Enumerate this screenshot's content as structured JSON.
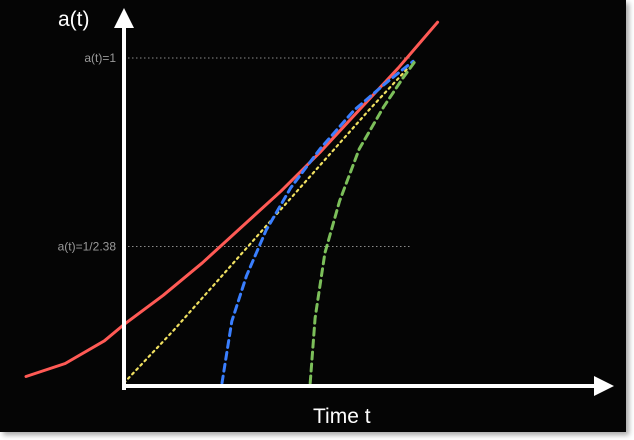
{
  "chart_data": {
    "type": "line",
    "ylabel": "a(t)",
    "xlabel": "Time t",
    "reference_lines": [
      {
        "label": "a(t)=1",
        "value": 1.0
      },
      {
        "label": "a(t)=1/2.38",
        "value": 0.42
      }
    ],
    "xlim": [
      -1.0,
      4.0
    ],
    "ylim": [
      0.0,
      1.2
    ],
    "series": [
      {
        "color": "#ff5a55",
        "style": "solid",
        "x": [
          -1.0,
          -0.6,
          -0.2,
          0.0,
          0.4,
          0.8,
          1.2,
          1.6,
          2.0,
          2.4,
          2.8,
          3.0,
          3.2
        ],
        "y": [
          0.02,
          0.06,
          0.13,
          0.18,
          0.27,
          0.37,
          0.48,
          0.59,
          0.71,
          0.84,
          0.97,
          1.04,
          1.11
        ]
      },
      {
        "color": "#f0e060",
        "style": "dotted",
        "x": [
          0.0,
          0.5,
          1.0,
          1.5,
          2.0,
          2.5,
          2.9
        ],
        "y": [
          0.0,
          0.16,
          0.33,
          0.5,
          0.67,
          0.84,
          0.97
        ]
      },
      {
        "color": "#3a7fff",
        "style": "dashed",
        "x": [
          1.0,
          1.1,
          1.25,
          1.45,
          1.7,
          2.0,
          2.35,
          2.7,
          2.95
        ],
        "y": [
          0.0,
          0.19,
          0.33,
          0.47,
          0.6,
          0.72,
          0.84,
          0.93,
          0.99
        ]
      },
      {
        "color": "#7cbf5a",
        "style": "dashed",
        "x": [
          1.9,
          1.95,
          2.05,
          2.2,
          2.4,
          2.65,
          2.85,
          2.97
        ],
        "y": [
          0.0,
          0.2,
          0.4,
          0.56,
          0.72,
          0.85,
          0.94,
          0.99
        ]
      }
    ]
  }
}
